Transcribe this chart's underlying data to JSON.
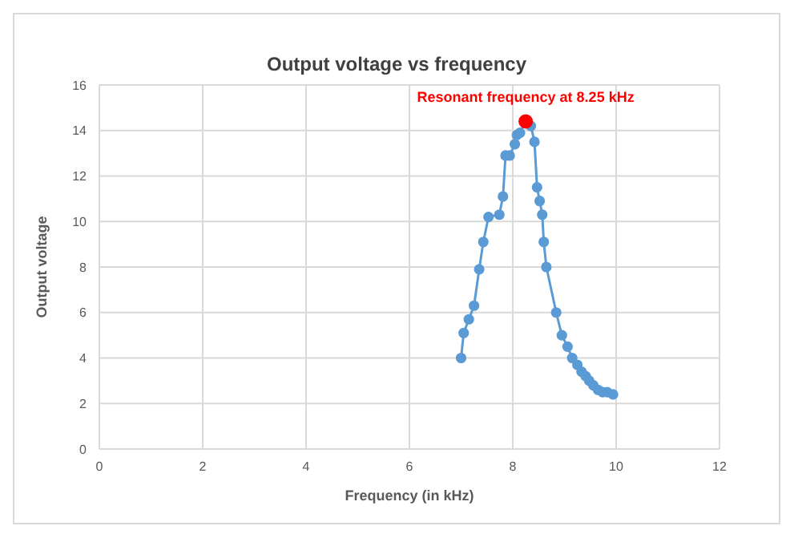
{
  "chart_data": {
    "type": "line",
    "title": "Output voltage vs frequency",
    "xlabel": "Frequency (in kHz)",
    "ylabel": "Output voltage",
    "xlim": [
      0,
      12
    ],
    "xticks": [
      0,
      2,
      4,
      6,
      8,
      10,
      12
    ],
    "ylim": [
      0,
      16
    ],
    "yticks": [
      0,
      2,
      4,
      6,
      8,
      10,
      12,
      14,
      16
    ],
    "grid": true,
    "marker": "circle",
    "line_style": "solid",
    "legend": false,
    "annotations": [
      {
        "text": "Resonant frequency at 8.25 kHz",
        "x": 8.25,
        "y": 14.4
      }
    ],
    "series": [
      {
        "type": "line",
        "color": "#5b9bd5",
        "x": [
          7.0,
          7.05,
          7.15,
          7.25,
          7.35,
          7.43,
          7.53,
          7.74,
          7.81,
          7.86,
          7.94,
          8.04,
          8.08,
          8.14,
          8.25,
          8.35,
          8.42,
          8.47,
          8.52,
          8.57,
          8.6,
          8.65,
          8.84,
          8.95,
          9.06,
          9.15,
          9.25,
          9.33,
          9.41,
          9.48,
          9.56,
          9.65,
          9.74,
          9.83,
          9.94
        ],
        "values": [
          4.0,
          5.1,
          5.7,
          6.3,
          7.9,
          9.1,
          10.2,
          10.3,
          11.1,
          12.9,
          12.9,
          13.4,
          13.8,
          13.9,
          14.4,
          14.2,
          13.5,
          11.5,
          10.9,
          10.3,
          9.1,
          8.0,
          6.0,
          5.0,
          4.5,
          4.0,
          3.7,
          3.4,
          3.2,
          3.0,
          2.8,
          2.6,
          2.5,
          2.5,
          2.4
        ]
      },
      {
        "type": "scatter",
        "color": "#ff0000",
        "x": [
          8.25
        ],
        "values": [
          14.4
        ]
      }
    ]
  }
}
